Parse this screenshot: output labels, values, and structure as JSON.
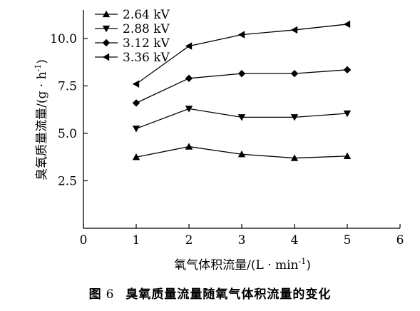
{
  "chart_data": {
    "type": "line",
    "title": "",
    "xlabel_prefix": "氧气体积流量/(L · min",
    "xlabel_sup": "-1",
    "xlabel_suffix": ")",
    "ylabel_prefix": "臭氧质量流量/(g · h",
    "ylabel_sup": "-1",
    "ylabel_suffix": ")",
    "xlim": [
      0,
      6
    ],
    "ylim": [
      0,
      11.5
    ],
    "xticks": [
      0,
      1,
      2,
      3,
      4,
      5,
      6
    ],
    "xtick_labels": [
      "0",
      "1",
      "2",
      "3",
      "4",
      "5",
      "6"
    ],
    "yticks": [
      2.5,
      5.0,
      7.5,
      10.0
    ],
    "ytick_labels": [
      "2.5",
      "5.0",
      "7.5",
      "10.0"
    ],
    "grid": false,
    "legend_position": "top-left",
    "x": [
      1,
      2,
      3,
      4,
      5
    ],
    "series": [
      {
        "name": "2.64 kV",
        "marker": "triangle-up",
        "values": [
          3.75,
          4.3,
          3.9,
          3.7,
          3.8
        ]
      },
      {
        "name": "2.88 kV",
        "marker": "triangle-down",
        "values": [
          5.25,
          6.3,
          5.85,
          5.85,
          6.05
        ]
      },
      {
        "name": "3.12 kV",
        "marker": "diamond",
        "values": [
          6.6,
          7.9,
          8.15,
          8.15,
          8.35
        ]
      },
      {
        "name": "3.36 kV",
        "marker": "triangle-left",
        "values": [
          7.6,
          9.6,
          10.2,
          10.45,
          10.75
        ]
      }
    ]
  },
  "caption": {
    "figure_label": "图",
    "figure_number": "6",
    "text": "臭氧质量流量随氧气体积流量的变化"
  }
}
